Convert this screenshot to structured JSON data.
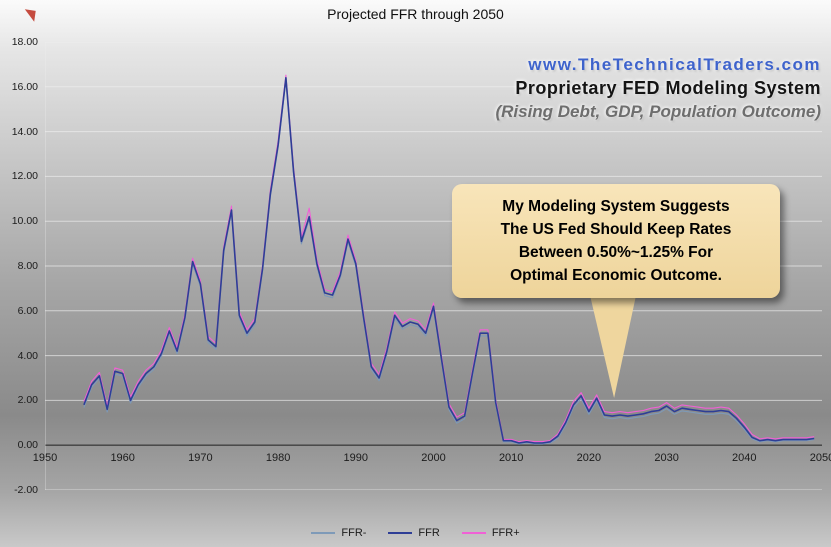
{
  "chart_data": {
    "type": "line",
    "title": "Projected FFR through 2050",
    "xlim": [
      1950,
      2050
    ],
    "ylim": [
      -2,
      18
    ],
    "grid": "horizontal",
    "legend_position": "bottom",
    "y_ticks": [
      18,
      16,
      14,
      12,
      10,
      8,
      6,
      4,
      2,
      0,
      -2
    ],
    "y_tick_labels": [
      "18.00",
      "16.00",
      "14.00",
      "12.00",
      "10.00",
      "8.00",
      "6.00",
      "4.00",
      "2.00",
      "0.00",
      "-2.00"
    ],
    "x_ticks": [
      1950,
      1960,
      1970,
      1980,
      1990,
      2000,
      2010,
      2020,
      2030,
      2040,
      2050
    ],
    "x_tick_labels": [
      "1950",
      "1960",
      "1970",
      "1980",
      "1990",
      "2000",
      "2010",
      "2020",
      "2030",
      "2040",
      "2050"
    ],
    "x": [
      1955,
      1956,
      1957,
      1958,
      1959,
      1960,
      1961,
      1962,
      1963,
      1964,
      1965,
      1966,
      1967,
      1968,
      1969,
      1970,
      1971,
      1972,
      1973,
      1974,
      1975,
      1976,
      1977,
      1978,
      1979,
      1980,
      1981,
      1982,
      1983,
      1984,
      1985,
      1986,
      1987,
      1988,
      1989,
      1990,
      1991,
      1992,
      1993,
      1994,
      1995,
      1996,
      1997,
      1998,
      1999,
      2000,
      2001,
      2002,
      2003,
      2004,
      2005,
      2006,
      2007,
      2008,
      2009,
      2010,
      2011,
      2012,
      2013,
      2014,
      2015,
      2016,
      2017,
      2018,
      2019,
      2020,
      2021,
      2022,
      2023,
      2024,
      2025,
      2026,
      2027,
      2028,
      2029,
      2030,
      2031,
      2032,
      2033,
      2034,
      2035,
      2036,
      2037,
      2038,
      2039,
      2040,
      2041,
      2042,
      2043,
      2044,
      2045,
      2046,
      2047,
      2048,
      2049
    ],
    "series": [
      {
        "name": "FFR-",
        "color": "#7e9ab8",
        "values": [
          1.68,
          2.58,
          2.98,
          1.48,
          3.18,
          3.08,
          1.88,
          2.58,
          3.08,
          3.38,
          3.98,
          4.98,
          4.08,
          5.58,
          8.08,
          7.08,
          4.58,
          4.28,
          8.58,
          10.38,
          5.68,
          4.88,
          5.38,
          7.78,
          11.08,
          13.28,
          16.28,
          12.08,
          8.98,
          10.08,
          7.98,
          6.68,
          6.58,
          7.48,
          9.08,
          7.98,
          5.58,
          3.38,
          2.88,
          4.08,
          5.68,
          5.18,
          5.38,
          5.28,
          4.88,
          6.08,
          3.78,
          1.58,
          0.98,
          1.18,
          3.08,
          4.88,
          4.88,
          1.78,
          0.15,
          0.15,
          0.05,
          0.1,
          0.05,
          0.05,
          0.1,
          0.3,
          0.88,
          1.68,
          2.08,
          1.38,
          1.98,
          1.23,
          1.18,
          1.23,
          1.18,
          1.23,
          1.28,
          1.38,
          1.43,
          1.63,
          1.38,
          1.53,
          1.48,
          1.43,
          1.38,
          1.38,
          1.43,
          1.38,
          1.08,
          0.7,
          0.28,
          0.15,
          0.2,
          0.15,
          0.2,
          0.2,
          0.2,
          0.2,
          0.25
        ]
      },
      {
        "name": "FFR",
        "color": "#2e3e96",
        "values": [
          1.8,
          2.7,
          3.1,
          1.6,
          3.3,
          3.2,
          2.0,
          2.7,
          3.2,
          3.5,
          4.1,
          5.1,
          4.2,
          5.7,
          8.2,
          7.2,
          4.7,
          4.4,
          8.7,
          10.5,
          5.8,
          5.0,
          5.5,
          7.9,
          11.2,
          13.4,
          16.4,
          12.2,
          9.1,
          10.2,
          8.1,
          6.8,
          6.7,
          7.6,
          9.2,
          8.1,
          5.7,
          3.5,
          3.0,
          4.2,
          5.8,
          5.3,
          5.5,
          5.4,
          5.0,
          6.2,
          3.9,
          1.7,
          1.1,
          1.3,
          3.2,
          5.0,
          5.0,
          1.9,
          0.2,
          0.2,
          0.1,
          0.15,
          0.1,
          0.1,
          0.15,
          0.4,
          1.0,
          1.8,
          2.2,
          1.5,
          2.1,
          1.35,
          1.3,
          1.35,
          1.3,
          1.35,
          1.4,
          1.5,
          1.55,
          1.75,
          1.5,
          1.65,
          1.6,
          1.55,
          1.5,
          1.5,
          1.55,
          1.5,
          1.2,
          0.8,
          0.35,
          0.2,
          0.25,
          0.2,
          0.25,
          0.25,
          0.25,
          0.25,
          0.3
        ]
      },
      {
        "name": "FFR+",
        "color": "#f061d6",
        "values": [
          1.95,
          2.85,
          3.25,
          1.75,
          3.45,
          3.35,
          2.15,
          2.85,
          3.35,
          3.65,
          4.25,
          5.25,
          4.35,
          5.85,
          8.35,
          7.35,
          4.85,
          4.55,
          8.85,
          10.68,
          5.95,
          5.15,
          5.65,
          8.05,
          11.38,
          13.58,
          16.52,
          12.38,
          9.28,
          10.58,
          8.28,
          6.95,
          6.85,
          7.75,
          9.38,
          8.25,
          5.85,
          3.65,
          3.15,
          4.35,
          5.95,
          5.45,
          5.65,
          5.55,
          5.15,
          6.35,
          4.05,
          1.85,
          1.25,
          1.45,
          3.35,
          5.15,
          5.15,
          2.05,
          0.26,
          0.26,
          0.16,
          0.21,
          0.16,
          0.16,
          0.21,
          0.5,
          1.12,
          1.95,
          2.35,
          1.65,
          2.25,
          1.5,
          1.45,
          1.5,
          1.45,
          1.5,
          1.55,
          1.65,
          1.7,
          1.9,
          1.65,
          1.8,
          1.75,
          1.7,
          1.65,
          1.65,
          1.7,
          1.65,
          1.35,
          0.95,
          0.48,
          0.28,
          0.33,
          0.28,
          0.33,
          0.33,
          0.33,
          0.33,
          0.38
        ]
      }
    ]
  },
  "watermark": {
    "url_line": "www.TheTechnicalTraders.com",
    "system_line": "Proprietary FED Modeling System",
    "sub_line": "(Rising Debt, GDP, Population Outcome)"
  },
  "callout": {
    "lines": [
      "My Modeling System Suggests",
      "The US Fed Should Keep Rates",
      "Between 0.50%~1.25% For",
      "Optimal Economic Outcome."
    ]
  },
  "colors": {
    "callout_bg": "#f3dca6",
    "watermark_blue": "#3e63cc",
    "zero_axis": "#3f3f3f",
    "gridline": "#efefef"
  }
}
